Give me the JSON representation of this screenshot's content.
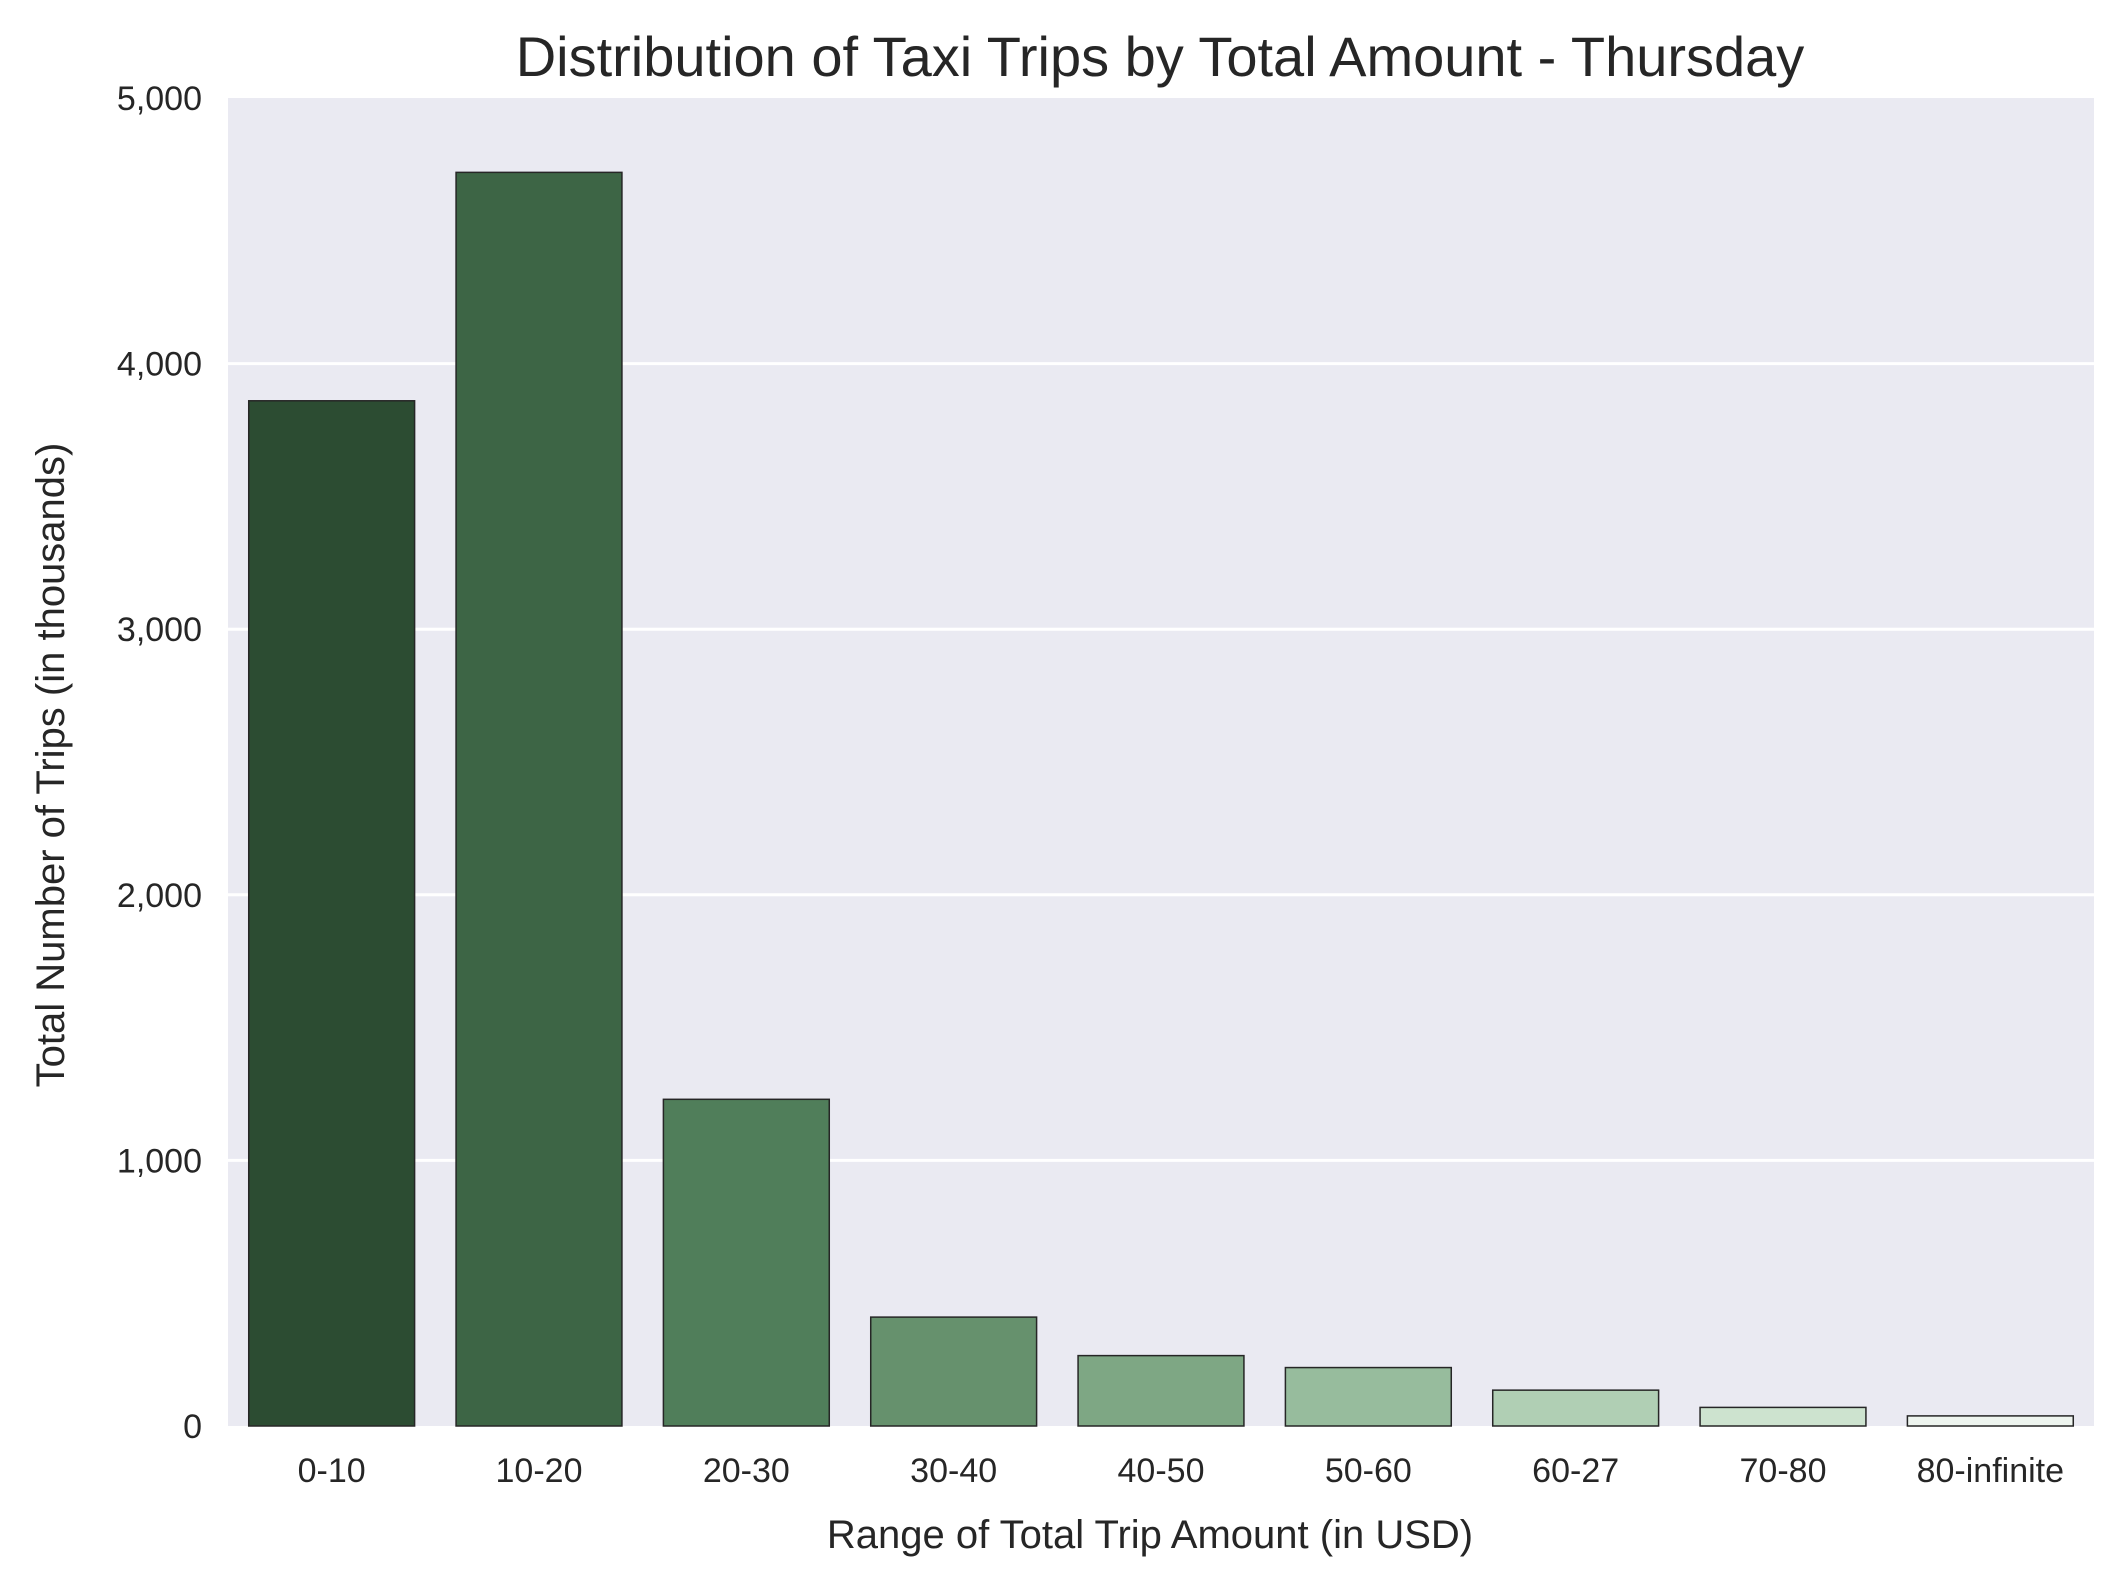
{
  "chart_data": {
    "type": "bar",
    "title": "Distribution of Taxi Trips by Total Amount - Thursday",
    "xlabel": "Range of Total Trip Amount (in USD)",
    "ylabel": "Total Number of Trips (in thousands)",
    "categories": [
      "0-10",
      "10-20",
      "20-30",
      "30-40",
      "40-50",
      "50-60",
      "60-27",
      "70-80",
      "80-infinite"
    ],
    "values": [
      3860,
      4720,
      1230,
      410,
      265,
      220,
      135,
      70,
      38
    ],
    "ylim": [
      0,
      5000
    ],
    "yticks": [
      0,
      1000,
      2000,
      3000,
      4000,
      5000
    ],
    "ytick_labels": [
      "0",
      "1,000",
      "2,000",
      "3,000",
      "4,000",
      "5,000"
    ],
    "grid": true,
    "legend": "none",
    "colors": {
      "plot_background": "#eaeaf2",
      "grid": "#ffffff",
      "bar_edge": "#262626",
      "bars": [
        "#2c4c32",
        "#3d6545",
        "#507e5a",
        "#66916d",
        "#7ea784",
        "#97bc9d",
        "#b0cfb4",
        "#cde3cf",
        "#eef5ef"
      ]
    }
  }
}
